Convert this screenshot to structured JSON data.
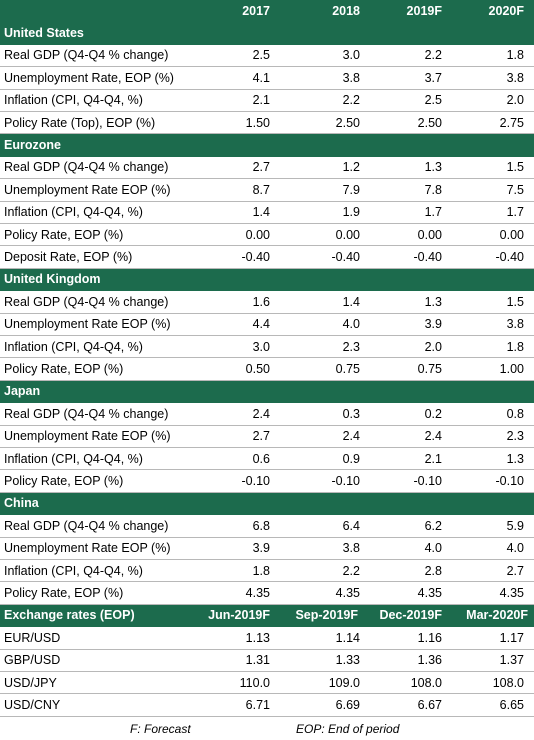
{
  "header": {
    "years": [
      "2017",
      "2018",
      "2019F",
      "2020F"
    ]
  },
  "sections": [
    {
      "title": "United States",
      "rows": [
        {
          "label": "Real GDP (Q4-Q4 % change)",
          "values": [
            "2.5",
            "3.0",
            "2.2",
            "1.8"
          ]
        },
        {
          "label": "Unemployment Rate, EOP (%)",
          "values": [
            "4.1",
            "3.8",
            "3.7",
            "3.8"
          ]
        },
        {
          "label": "Inflation (CPI, Q4-Q4, %)",
          "values": [
            "2.1",
            "2.2",
            "2.5",
            "2.0"
          ]
        },
        {
          "label": "Policy Rate (Top), EOP (%)",
          "values": [
            "1.50",
            "2.50",
            "2.50",
            "2.75"
          ]
        }
      ]
    },
    {
      "title": "Eurozone",
      "rows": [
        {
          "label": "Real GDP (Q4-Q4 % change)",
          "values": [
            "2.7",
            "1.2",
            "1.3",
            "1.5"
          ]
        },
        {
          "label": "Unemployment Rate EOP (%)",
          "values": [
            "8.7",
            "7.9",
            "7.8",
            "7.5"
          ]
        },
        {
          "label": "Inflation (CPI, Q4-Q4, %)",
          "values": [
            "1.4",
            "1.9",
            "1.7",
            "1.7"
          ]
        },
        {
          "label": "Policy Rate, EOP (%)",
          "values": [
            "0.00",
            "0.00",
            "0.00",
            "0.00"
          ]
        },
        {
          "label": "Deposit Rate, EOP (%)",
          "values": [
            "-0.40",
            "-0.40",
            "-0.40",
            "-0.40"
          ]
        }
      ]
    },
    {
      "title": "United Kingdom",
      "rows": [
        {
          "label": "Real GDP (Q4-Q4 % change)",
          "values": [
            "1.6",
            "1.4",
            "1.3",
            "1.5"
          ]
        },
        {
          "label": "Unemployment Rate EOP (%)",
          "values": [
            "4.4",
            "4.0",
            "3.9",
            "3.8"
          ]
        },
        {
          "label": "Inflation (CPI, Q4-Q4, %)",
          "values": [
            "3.0",
            "2.3",
            "2.0",
            "1.8"
          ]
        },
        {
          "label": "Policy Rate, EOP (%)",
          "values": [
            "0.50",
            "0.75",
            "0.75",
            "1.00"
          ]
        }
      ]
    },
    {
      "title": "Japan",
      "rows": [
        {
          "label": "Real GDP (Q4-Q4 % change)",
          "values": [
            "2.4",
            "0.3",
            "0.2",
            "0.8"
          ]
        },
        {
          "label": "Unemployment Rate EOP (%)",
          "values": [
            "2.7",
            "2.4",
            "2.4",
            "2.3"
          ]
        },
        {
          "label": "Inflation (CPI, Q4-Q4, %)",
          "values": [
            "0.6",
            "0.9",
            "2.1",
            "1.3"
          ]
        },
        {
          "label": "Policy Rate, EOP (%)",
          "values": [
            "-0.10",
            "-0.10",
            "-0.10",
            "-0.10"
          ]
        }
      ]
    },
    {
      "title": "China",
      "rows": [
        {
          "label": "Real GDP (Q4-Q4 % change)",
          "values": [
            "6.8",
            "6.4",
            "6.2",
            "5.9"
          ]
        },
        {
          "label": "Unemployment Rate EOP (%)",
          "values": [
            "3.9",
            "3.8",
            "4.0",
            "4.0"
          ]
        },
        {
          "label": "Inflation (CPI, Q4-Q4, %)",
          "values": [
            "1.8",
            "2.2",
            "2.8",
            "2.7"
          ]
        },
        {
          "label": "Policy Rate, EOP (%)",
          "values": [
            "4.35",
            "4.35",
            "4.35",
            "4.35"
          ]
        }
      ]
    }
  ],
  "fx": {
    "title": "Exchange rates (EOP)",
    "periods": [
      "Jun-2019F",
      "Sep-2019F",
      "Dec-2019F",
      "Mar-2020F"
    ],
    "rows": [
      {
        "label": "EUR/USD",
        "values": [
          "1.13",
          "1.14",
          "1.16",
          "1.17"
        ]
      },
      {
        "label": "GBP/USD",
        "values": [
          "1.31",
          "1.33",
          "1.36",
          "1.37"
        ]
      },
      {
        "label": "USD/JPY",
        "values": [
          "110.0",
          "109.0",
          "108.0",
          "108.0"
        ]
      },
      {
        "label": "USD/CNY",
        "values": [
          "6.71",
          "6.69",
          "6.67",
          "6.65"
        ]
      }
    ]
  },
  "footnotes": {
    "left": "F: Forecast",
    "right": "EOP: End of period"
  },
  "colors": {
    "band": "#1c6b4d",
    "band_text": "#ffffff",
    "rule": "#b8b8b8"
  }
}
